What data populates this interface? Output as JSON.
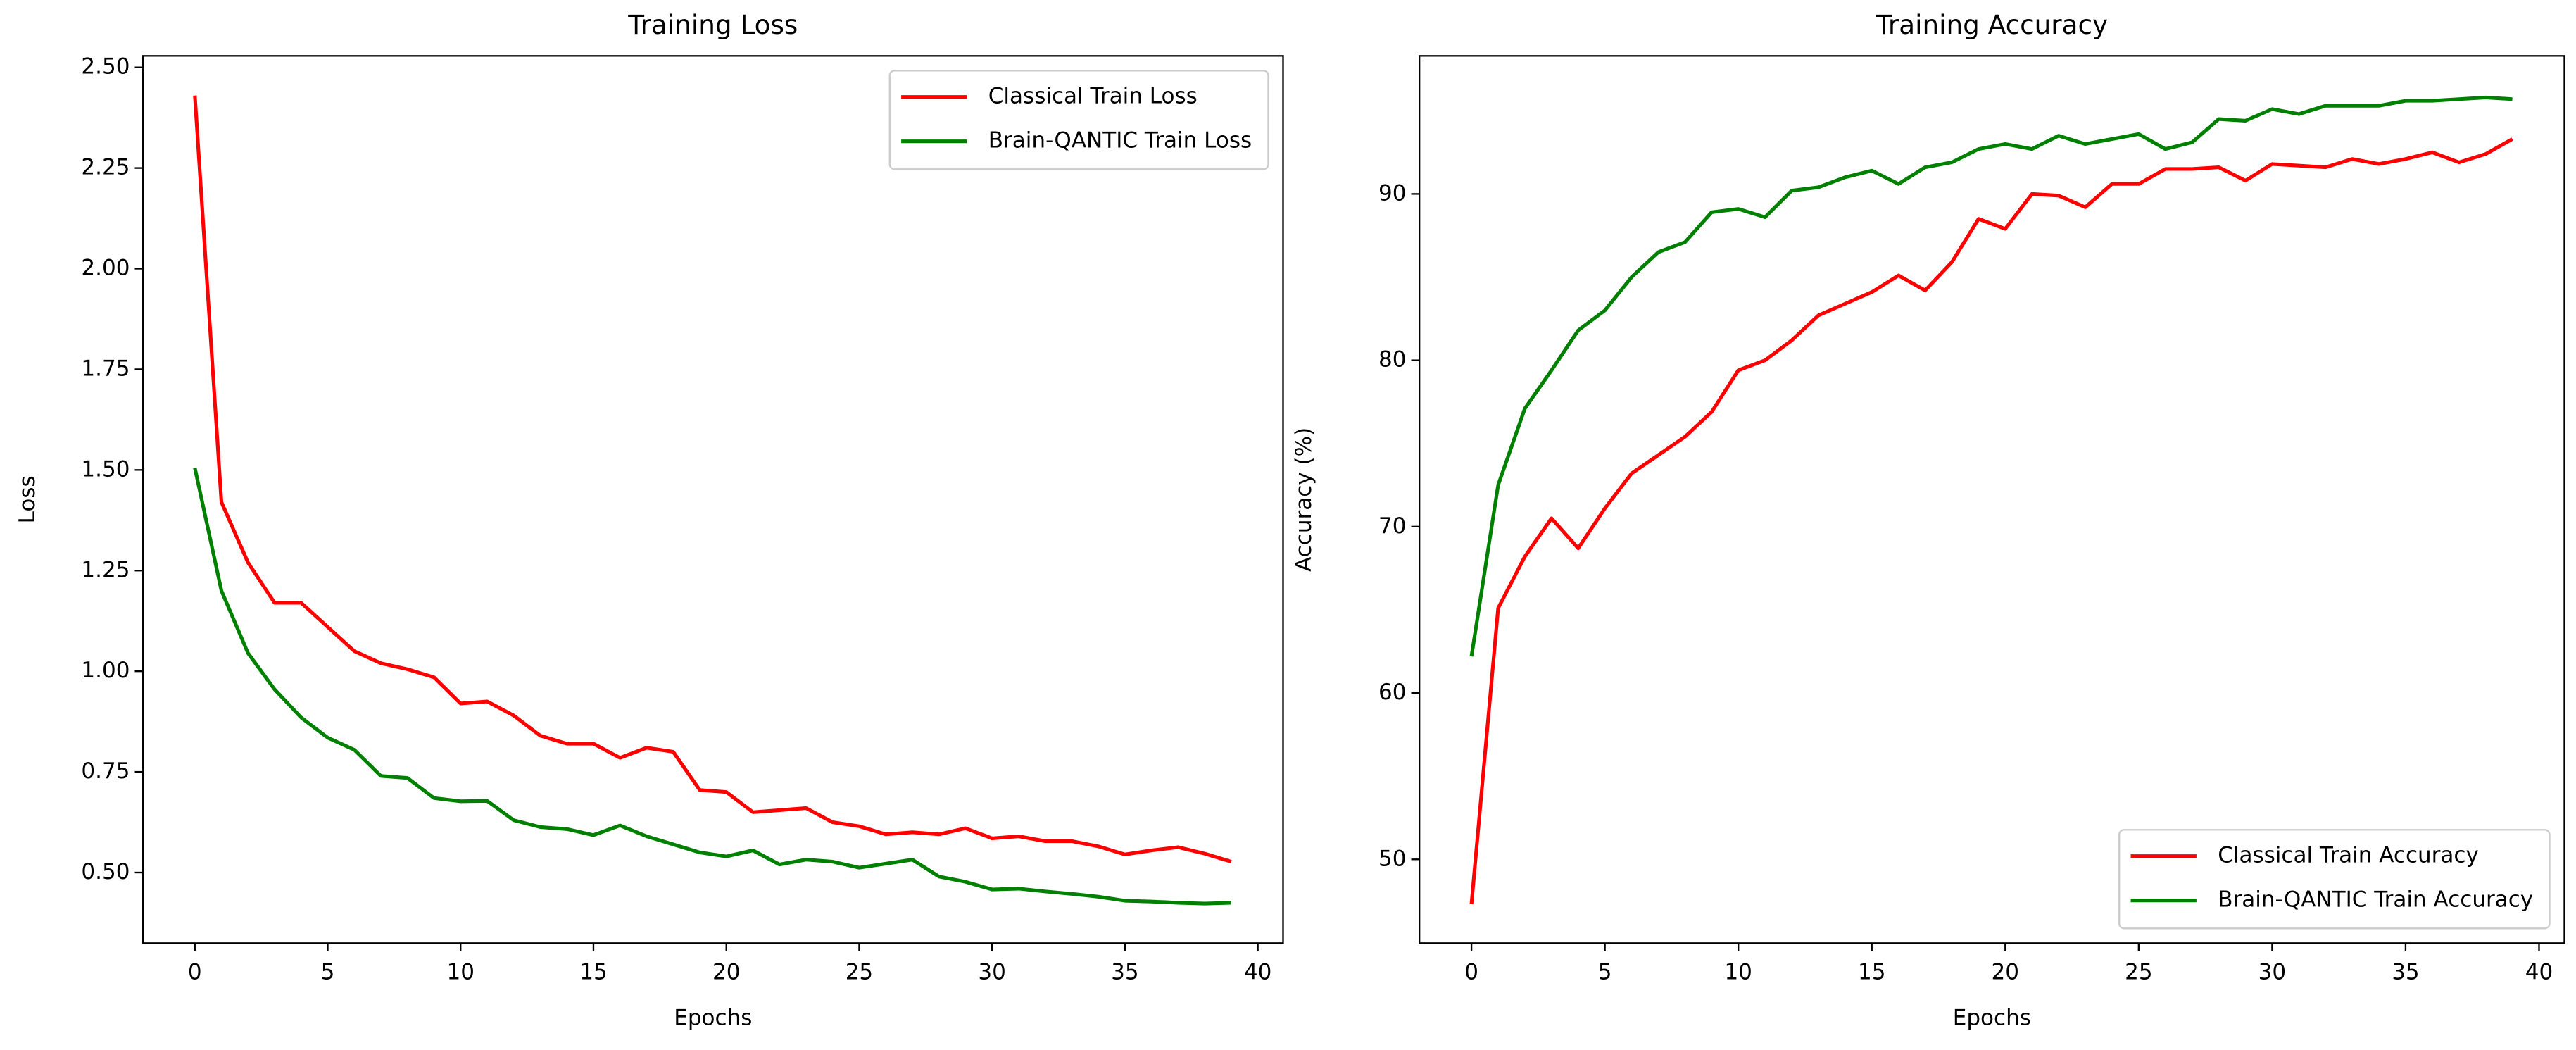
{
  "chart_data": [
    {
      "type": "line",
      "title": "Training Loss",
      "xlabel": "Epochs",
      "ylabel": "Loss",
      "x": [
        0,
        1,
        2,
        3,
        4,
        5,
        6,
        7,
        8,
        9,
        10,
        11,
        12,
        13,
        14,
        15,
        16,
        17,
        18,
        19,
        20,
        21,
        22,
        23,
        24,
        25,
        26,
        27,
        28,
        29,
        30,
        31,
        32,
        33,
        34,
        35,
        36,
        37,
        38,
        39
      ],
      "series": [
        {
          "name": "Classical Train Loss",
          "color": "#ff0000",
          "values": [
            2.43,
            1.42,
            1.27,
            1.17,
            1.17,
            1.11,
            1.05,
            1.02,
            1.005,
            0.985,
            0.92,
            0.925,
            0.89,
            0.84,
            0.82,
            0.82,
            0.785,
            0.81,
            0.8,
            0.705,
            0.7,
            0.65,
            0.655,
            0.66,
            0.625,
            0.615,
            0.595,
            0.6,
            0.595,
            0.61,
            0.585,
            0.59,
            0.578,
            0.578,
            0.565,
            0.545,
            0.555,
            0.563,
            0.547,
            0.527
          ]
        },
        {
          "name": "Brain-QANTIC Train Loss",
          "color": "#008000",
          "values": [
            1.505,
            1.2,
            1.045,
            0.955,
            0.885,
            0.835,
            0.805,
            0.74,
            0.735,
            0.685,
            0.677,
            0.678,
            0.63,
            0.613,
            0.608,
            0.593,
            0.617,
            0.59,
            0.57,
            0.55,
            0.54,
            0.555,
            0.52,
            0.532,
            0.527,
            0.512,
            0.522,
            0.532,
            0.49,
            0.477,
            0.458,
            0.46,
            0.453,
            0.447,
            0.44,
            0.43,
            0.428,
            0.425,
            0.423,
            0.425
          ]
        }
      ],
      "xlim": [
        -1.95,
        40.95
      ],
      "xticks": [
        0,
        5,
        10,
        15,
        20,
        25,
        30,
        35,
        40
      ],
      "ylim": [
        0.3245,
        2.5286
      ],
      "yticks": [
        {
          "value": 0.5,
          "label": "0.50"
        },
        {
          "value": 0.75,
          "label": "0.75"
        },
        {
          "value": 1,
          "label": "1.00"
        },
        {
          "value": 1.25,
          "label": "1.25"
        },
        {
          "value": 1.5,
          "label": "1.50"
        },
        {
          "value": 1.75,
          "label": "1.75"
        },
        {
          "value": 2,
          "label": "2.00"
        },
        {
          "value": 2.25,
          "label": "2.25"
        },
        {
          "value": 2.5,
          "label": "2.50"
        }
      ],
      "legend": "upper right"
    },
    {
      "type": "line",
      "title": "Training Accuracy",
      "xlabel": "Epochs",
      "ylabel": "Accuracy (%)",
      "x": [
        0,
        1,
        2,
        3,
        4,
        5,
        6,
        7,
        8,
        9,
        10,
        11,
        12,
        13,
        14,
        15,
        16,
        17,
        18,
        19,
        20,
        21,
        22,
        23,
        24,
        25,
        26,
        27,
        28,
        29,
        30,
        31,
        32,
        33,
        34,
        35,
        36,
        37,
        38,
        39
      ],
      "series": [
        {
          "name": "Classical Train Accuracy",
          "color": "#ff0000",
          "values": [
            47.3,
            65.1,
            68.2,
            70.5,
            68.7,
            71.1,
            73.2,
            74.3,
            75.4,
            76.9,
            79.4,
            80.0,
            81.2,
            82.7,
            83.4,
            84.1,
            85.1,
            84.2,
            85.9,
            88.5,
            87.9,
            90.0,
            89.9,
            89.2,
            90.6,
            90.6,
            91.5,
            91.5,
            91.6,
            90.8,
            91.8,
            91.7,
            91.6,
            92.1,
            91.8,
            92.1,
            92.5,
            91.9,
            92.4,
            93.3
          ]
        },
        {
          "name": "Brain-QANTIC Train Accuracy",
          "color": "#008000",
          "values": [
            62.2,
            72.5,
            77.1,
            79.4,
            81.8,
            83.0,
            85.0,
            86.5,
            87.1,
            88.9,
            89.1,
            88.6,
            90.2,
            90.4,
            91.0,
            91.4,
            90.6,
            91.6,
            91.9,
            92.7,
            93.0,
            92.7,
            93.5,
            93.0,
            93.3,
            93.6,
            92.7,
            93.1,
            94.5,
            94.4,
            95.1,
            94.8,
            95.3,
            95.3,
            95.3,
            95.6,
            95.6,
            95.7,
            95.8,
            95.7
          ]
        }
      ],
      "xlim": [
        -1.95,
        40.95
      ],
      "xticks": [
        0,
        5,
        10,
        15,
        20,
        25,
        30,
        35,
        40
      ],
      "ylim": [
        44.96,
        98.3
      ],
      "yticks": [
        50,
        60,
        70,
        80,
        90
      ],
      "legend": "lower right"
    }
  ]
}
